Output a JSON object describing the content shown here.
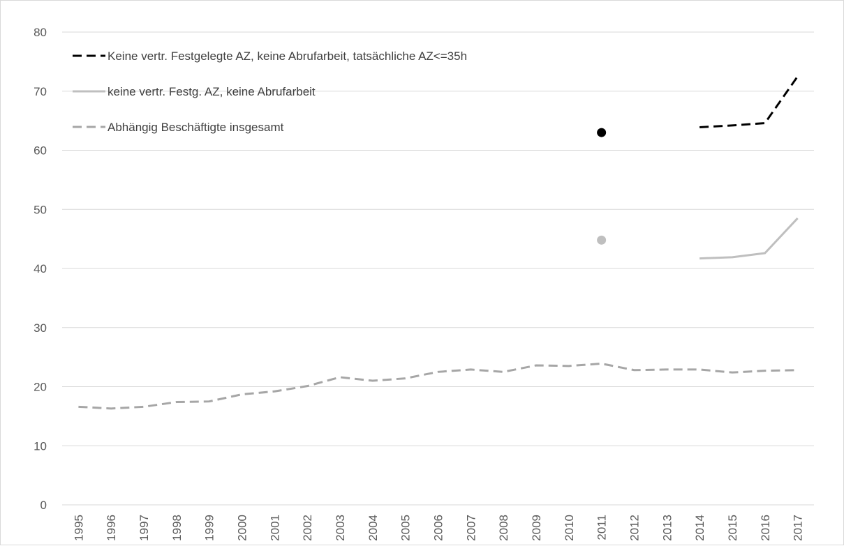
{
  "chart_data": {
    "type": "line",
    "title": "",
    "xlabel": "",
    "ylabel": "",
    "ylim": [
      0,
      80
    ],
    "yticks": [
      0,
      10,
      20,
      30,
      40,
      50,
      60,
      70,
      80
    ],
    "grid": "horizontal",
    "legend_position": "top-left",
    "x": [
      "1995",
      "1996",
      "1997",
      "1998",
      "1999",
      "2000",
      "2001",
      "2002",
      "2003",
      "2004",
      "2005",
      "2006",
      "2007",
      "2008",
      "2009",
      "2010",
      "2011",
      "2012",
      "2013",
      "2014",
      "2015",
      "2016",
      "2017"
    ],
    "series": [
      {
        "name": "Keine vertr. Festgelegte AZ, keine Abrufarbeit, tatsächliche AZ<=35h",
        "color": "#000000",
        "style": "dashed",
        "values": [
          null,
          null,
          null,
          null,
          null,
          null,
          null,
          null,
          null,
          null,
          null,
          null,
          null,
          null,
          null,
          null,
          63.0,
          null,
          null,
          63.9,
          64.2,
          64.6,
          72.5
        ]
      },
      {
        "name": "keine vertr. Festg. AZ, keine Abrufarbeit",
        "color": "#bfbfbf",
        "style": "solid",
        "values": [
          null,
          null,
          null,
          null,
          null,
          null,
          null,
          null,
          null,
          null,
          null,
          null,
          null,
          null,
          null,
          null,
          44.8,
          null,
          null,
          41.7,
          41.9,
          42.6,
          48.5
        ]
      },
      {
        "name": "Abhängig Beschäftigte insgesamt",
        "color": "#a6a6a6",
        "style": "dashed",
        "values": [
          16.6,
          16.3,
          16.6,
          17.4,
          17.5,
          18.7,
          19.2,
          20.1,
          21.6,
          21.0,
          21.4,
          22.5,
          22.9,
          22.5,
          23.6,
          23.5,
          23.9,
          22.8,
          22.9,
          22.9,
          22.4,
          22.7,
          22.8
        ]
      }
    ]
  }
}
